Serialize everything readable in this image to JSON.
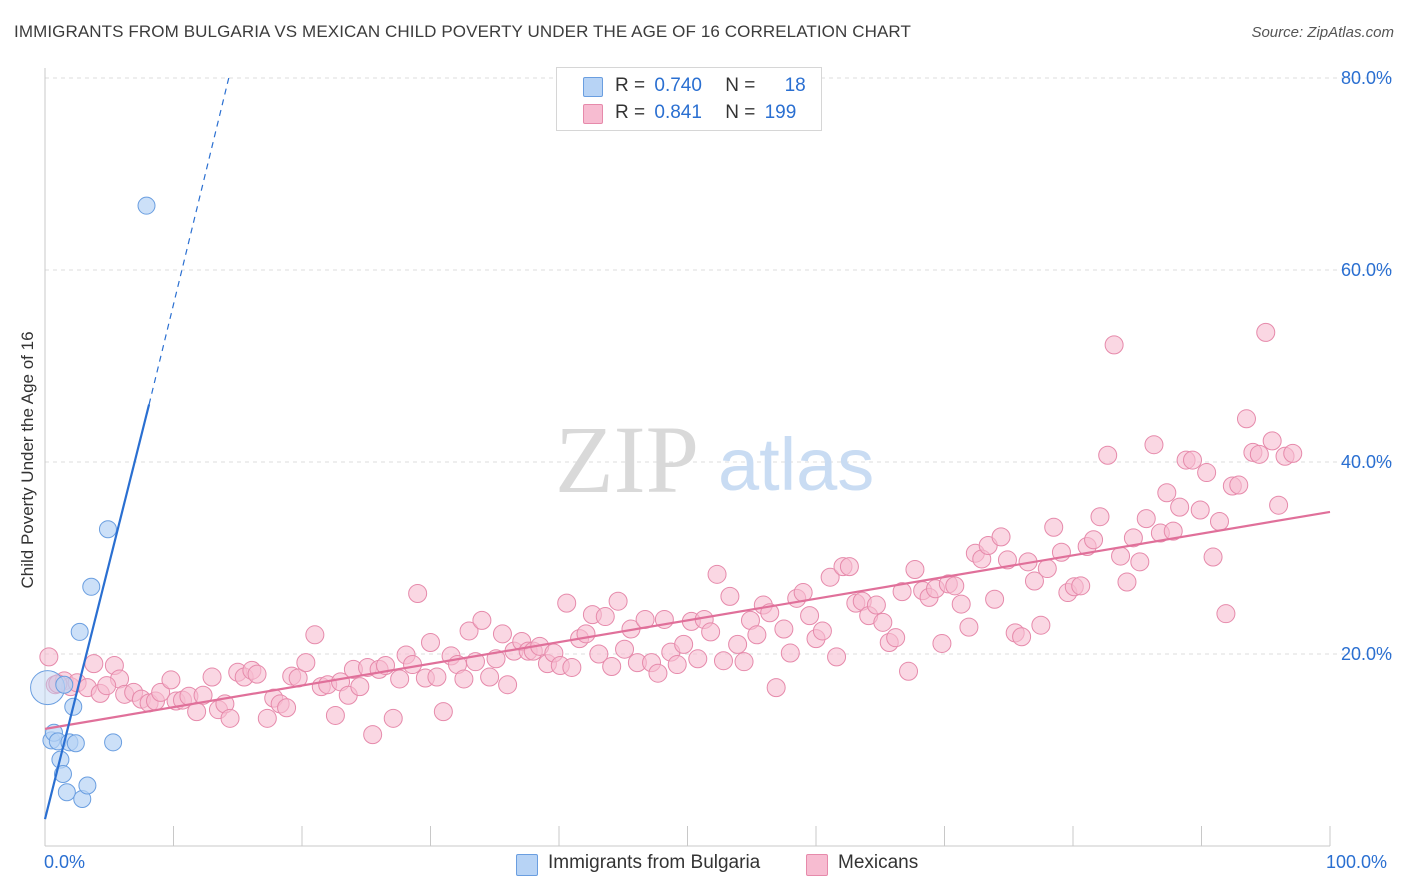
{
  "title": "IMMIGRANTS FROM BULGARIA VS MEXICAN CHILD POVERTY UNDER THE AGE OF 16 CORRELATION CHART",
  "source": "Source: ZipAtlas.com",
  "watermark": {
    "zip": "ZIP",
    "atlas": "atlas"
  },
  "legend": {
    "r_label": "R =",
    "n_label": "N =",
    "rows": [
      {
        "r": "0.740",
        "n": "18"
      },
      {
        "r": "0.841",
        "n": "199"
      }
    ]
  },
  "colors": {
    "blue_fill": "#b7d3f5",
    "blue_stroke": "#6a9ee0",
    "blue_line": "#2a6fd1",
    "pink_fill": "#f7bcd1",
    "pink_stroke": "#e68aab",
    "pink_line": "#e0709a",
    "accent_text": "#2a6fd1"
  },
  "chart_data": {
    "type": "scatter",
    "title": "IMMIGRANTS FROM BULGARIA VS MEXICAN CHILD POVERTY UNDER THE AGE OF 16 CORRELATION CHART",
    "xlabel": "",
    "ylabel": "Child Poverty Under the Age of 16",
    "xlim": [
      0,
      100
    ],
    "ylim": [
      0,
      80
    ],
    "x_tick_labels": [
      "0.0%",
      "100.0%"
    ],
    "y_ticks": [
      20,
      40,
      60,
      80
    ],
    "y_tick_labels": [
      "20.0%",
      "40.0%",
      "60.0%",
      "80.0%"
    ],
    "grid": true,
    "legend_position": "top-center",
    "series": [
      {
        "name": "Immigrants from Bulgaria",
        "r": 0.74,
        "n": 18,
        "points": [
          [
            0.2,
            16.5
          ],
          [
            0.5,
            11.0
          ],
          [
            0.7,
            11.8
          ],
          [
            1.0,
            10.9
          ],
          [
            1.2,
            9.0
          ],
          [
            1.4,
            7.5
          ],
          [
            1.7,
            5.6
          ],
          [
            1.9,
            10.8
          ],
          [
            2.2,
            14.5
          ],
          [
            2.4,
            10.7
          ],
          [
            2.7,
            22.3
          ],
          [
            2.9,
            4.9
          ],
          [
            3.3,
            6.3
          ],
          [
            3.6,
            27.0
          ],
          [
            4.9,
            33.0
          ],
          [
            5.3,
            10.8
          ],
          [
            7.9,
            66.7
          ],
          [
            1.5,
            16.8
          ]
        ],
        "trend": {
          "x0": 0.0,
          "y0": 2.8,
          "x1": 8.1,
          "y1": 46.0
        },
        "trend_dashed": {
          "x0": 8.1,
          "y0": 46.0,
          "x1": 14.3,
          "y1": 80.0
        }
      },
      {
        "name": "Mexicans",
        "r": 0.841,
        "n": 199,
        "points": [
          [
            0.3,
            19.7
          ],
          [
            0.8,
            16.8
          ],
          [
            1.5,
            17.2
          ],
          [
            2.0,
            16.6
          ],
          [
            2.5,
            17.0
          ],
          [
            3.3,
            16.5
          ],
          [
            3.8,
            19.0
          ],
          [
            4.3,
            15.9
          ],
          [
            5.4,
            18.8
          ],
          [
            5.8,
            17.4
          ],
          [
            6.2,
            15.8
          ],
          [
            6.9,
            16.0
          ],
          [
            7.5,
            15.3
          ],
          [
            8.1,
            14.9
          ],
          [
            8.6,
            15.1
          ],
          [
            9.0,
            16.0
          ],
          [
            9.8,
            17.3
          ],
          [
            10.2,
            15.1
          ],
          [
            10.7,
            15.2
          ],
          [
            11.2,
            15.6
          ],
          [
            11.8,
            14.0
          ],
          [
            12.3,
            15.7
          ],
          [
            13.0,
            17.6
          ],
          [
            13.5,
            14.2
          ],
          [
            14.0,
            14.8
          ],
          [
            14.4,
            13.3
          ],
          [
            15.0,
            18.1
          ],
          [
            15.5,
            17.6
          ],
          [
            16.1,
            18.3
          ],
          [
            16.5,
            17.9
          ],
          [
            17.3,
            13.3
          ],
          [
            17.8,
            15.4
          ],
          [
            18.3,
            14.8
          ],
          [
            18.8,
            14.4
          ],
          [
            19.2,
            17.7
          ],
          [
            19.7,
            17.5
          ],
          [
            20.3,
            19.1
          ],
          [
            21.0,
            22.0
          ],
          [
            21.5,
            16.6
          ],
          [
            22.0,
            16.8
          ],
          [
            22.6,
            13.6
          ],
          [
            23.0,
            17.1
          ],
          [
            23.6,
            15.7
          ],
          [
            24.0,
            18.4
          ],
          [
            24.5,
            16.6
          ],
          [
            25.1,
            18.6
          ],
          [
            25.5,
            11.6
          ],
          [
            26.0,
            18.4
          ],
          [
            26.5,
            18.8
          ],
          [
            27.1,
            13.3
          ],
          [
            27.6,
            17.4
          ],
          [
            28.1,
            19.9
          ],
          [
            28.6,
            18.9
          ],
          [
            29.0,
            26.3
          ],
          [
            29.6,
            17.5
          ],
          [
            30.0,
            21.2
          ],
          [
            30.5,
            17.6
          ],
          [
            31.0,
            14.0
          ],
          [
            31.6,
            19.8
          ],
          [
            32.1,
            18.9
          ],
          [
            32.6,
            17.4
          ],
          [
            33.0,
            22.4
          ],
          [
            33.5,
            19.2
          ],
          [
            34.0,
            23.5
          ],
          [
            34.6,
            17.6
          ],
          [
            35.1,
            19.5
          ],
          [
            35.6,
            22.1
          ],
          [
            36.0,
            16.8
          ],
          [
            36.5,
            20.3
          ],
          [
            37.1,
            21.3
          ],
          [
            37.6,
            20.3
          ],
          [
            38.0,
            20.3
          ],
          [
            38.5,
            20.8
          ],
          [
            39.1,
            19.0
          ],
          [
            39.6,
            20.1
          ],
          [
            40.1,
            18.8
          ],
          [
            40.6,
            25.3
          ],
          [
            41.0,
            18.6
          ],
          [
            41.6,
            21.6
          ],
          [
            42.1,
            22.1
          ],
          [
            42.6,
            24.1
          ],
          [
            43.1,
            20.0
          ],
          [
            43.6,
            23.9
          ],
          [
            44.1,
            18.7
          ],
          [
            44.6,
            25.5
          ],
          [
            45.1,
            20.5
          ],
          [
            45.6,
            22.6
          ],
          [
            46.1,
            19.1
          ],
          [
            46.7,
            23.6
          ],
          [
            47.2,
            19.1
          ],
          [
            47.7,
            18.0
          ],
          [
            48.2,
            23.6
          ],
          [
            48.7,
            20.2
          ],
          [
            49.2,
            18.9
          ],
          [
            49.7,
            21.0
          ],
          [
            50.3,
            23.4
          ],
          [
            50.8,
            19.5
          ],
          [
            51.3,
            23.6
          ],
          [
            51.8,
            22.3
          ],
          [
            52.3,
            28.3
          ],
          [
            52.8,
            19.3
          ],
          [
            53.3,
            26.0
          ],
          [
            53.9,
            21.0
          ],
          [
            54.4,
            19.2
          ],
          [
            54.9,
            23.5
          ],
          [
            55.4,
            22.0
          ],
          [
            55.9,
            25.1
          ],
          [
            56.4,
            24.3
          ],
          [
            56.9,
            16.5
          ],
          [
            57.5,
            22.6
          ],
          [
            58.0,
            20.1
          ],
          [
            58.5,
            25.8
          ],
          [
            59.0,
            26.4
          ],
          [
            59.5,
            24.0
          ],
          [
            60.0,
            21.6
          ],
          [
            60.5,
            22.4
          ],
          [
            61.1,
            28.0
          ],
          [
            61.6,
            19.7
          ],
          [
            62.1,
            29.1
          ],
          [
            62.6,
            29.1
          ],
          [
            63.1,
            25.3
          ],
          [
            63.6,
            25.5
          ],
          [
            64.1,
            24.0
          ],
          [
            64.7,
            25.1
          ],
          [
            65.2,
            23.3
          ],
          [
            65.7,
            21.2
          ],
          [
            66.2,
            21.7
          ],
          [
            66.7,
            26.5
          ],
          [
            67.2,
            18.2
          ],
          [
            67.7,
            28.8
          ],
          [
            68.3,
            26.6
          ],
          [
            68.8,
            25.9
          ],
          [
            69.3,
            26.8
          ],
          [
            69.8,
            21.1
          ],
          [
            70.3,
            27.3
          ],
          [
            70.8,
            27.1
          ],
          [
            71.3,
            25.2
          ],
          [
            71.9,
            22.8
          ],
          [
            72.4,
            30.5
          ],
          [
            72.9,
            29.9
          ],
          [
            73.4,
            31.3
          ],
          [
            73.9,
            25.7
          ],
          [
            74.4,
            32.2
          ],
          [
            74.9,
            29.8
          ],
          [
            75.5,
            22.2
          ],
          [
            76.0,
            21.8
          ],
          [
            76.5,
            29.6
          ],
          [
            77.0,
            27.6
          ],
          [
            77.5,
            23.0
          ],
          [
            78.0,
            28.9
          ],
          [
            78.5,
            33.2
          ],
          [
            79.1,
            30.6
          ],
          [
            79.6,
            26.4
          ],
          [
            80.1,
            27.0
          ],
          [
            80.6,
            27.1
          ],
          [
            81.1,
            31.2
          ],
          [
            81.6,
            31.9
          ],
          [
            82.1,
            34.3
          ],
          [
            82.7,
            40.7
          ],
          [
            83.2,
            52.2
          ],
          [
            83.7,
            30.2
          ],
          [
            84.2,
            27.5
          ],
          [
            84.7,
            32.1
          ],
          [
            85.2,
            29.6
          ],
          [
            85.7,
            34.1
          ],
          [
            86.3,
            41.8
          ],
          [
            86.8,
            32.6
          ],
          [
            87.3,
            36.8
          ],
          [
            87.8,
            32.8
          ],
          [
            88.3,
            35.3
          ],
          [
            88.8,
            40.2
          ],
          [
            89.3,
            40.2
          ],
          [
            89.9,
            35.0
          ],
          [
            90.4,
            38.9
          ],
          [
            90.9,
            30.1
          ],
          [
            91.4,
            33.8
          ],
          [
            91.9,
            24.2
          ],
          [
            92.4,
            37.5
          ],
          [
            92.9,
            37.6
          ],
          [
            93.5,
            44.5
          ],
          [
            94.0,
            41.0
          ],
          [
            94.5,
            40.8
          ],
          [
            95.0,
            53.5
          ],
          [
            95.5,
            42.2
          ],
          [
            96.0,
            35.5
          ],
          [
            96.5,
            40.6
          ],
          [
            97.1,
            40.9
          ],
          [
            4.8,
            16.7
          ],
          [
            1.0,
            16.9
          ]
        ],
        "trend": {
          "x0": 0.0,
          "y0": 12.2,
          "x1": 100.0,
          "y1": 34.8
        }
      }
    ]
  },
  "bottom_legend": {
    "items": [
      {
        "label": "Immigrants from Bulgaria"
      },
      {
        "label": "Mexicans"
      }
    ]
  }
}
